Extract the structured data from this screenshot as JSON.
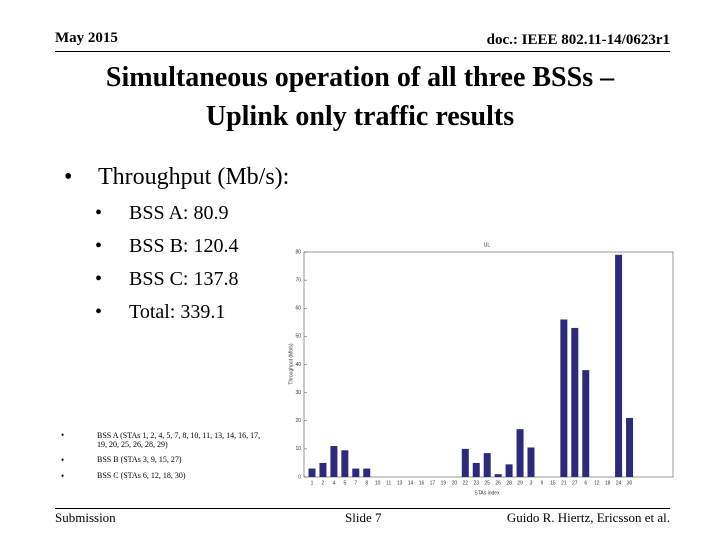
{
  "header": {
    "date": "May 2015",
    "doc": "doc.: IEEE 802.11-14/0623r1"
  },
  "title": [
    "Simultaneous operation of all three BSSs –",
    "Uplink only traffic results"
  ],
  "bullets": {
    "heading": "Throughput (Mb/s):",
    "items": [
      "BSS A: 80.9",
      "BSS B: 120.4",
      "BSS C: 137.8",
      "Total: 339.1"
    ]
  },
  "notes": [
    "BSS A (STAs 1, 2, 4, 5, 7, 8, 10, 11, 13, 14, 16, 17, 19, 20, 25, 26, 28, 29)",
    "BSS B (STAs 3, 9, 15, 27)",
    "BSS C (STAs 6, 12, 18, 30)"
  ],
  "chart_data": {
    "type": "bar",
    "title": "UL",
    "y_label": "Throughput (Mb/s)",
    "x_label": "STAs index",
    "color": "#2e2a7a",
    "categories": [
      "1",
      "2",
      "4",
      "5",
      "7",
      "8",
      "10",
      "11",
      "13",
      "14",
      "16",
      "17",
      "19",
      "20",
      "22",
      "23",
      "25",
      "26",
      "28",
      "29",
      "3",
      "9",
      "15",
      "21",
      "27",
      "6",
      "12",
      "18",
      "24",
      "30"
    ],
    "values": [
      3,
      5,
      11,
      9.5,
      3,
      3,
      0,
      0,
      0,
      0,
      0,
      0,
      0,
      0,
      10,
      5,
      8.5,
      1,
      4.5,
      17,
      10.5,
      0,
      0,
      56,
      53,
      38,
      0,
      0,
      79,
      21
    ],
    "ylim": [
      0,
      80
    ],
    "yticks": [
      0,
      10,
      20,
      30,
      40,
      50,
      60,
      70,
      80
    ]
  },
  "footer": {
    "left": "Submission",
    "center": "Slide 7",
    "right": "Guido R. Hiertz, Ericsson et al."
  }
}
